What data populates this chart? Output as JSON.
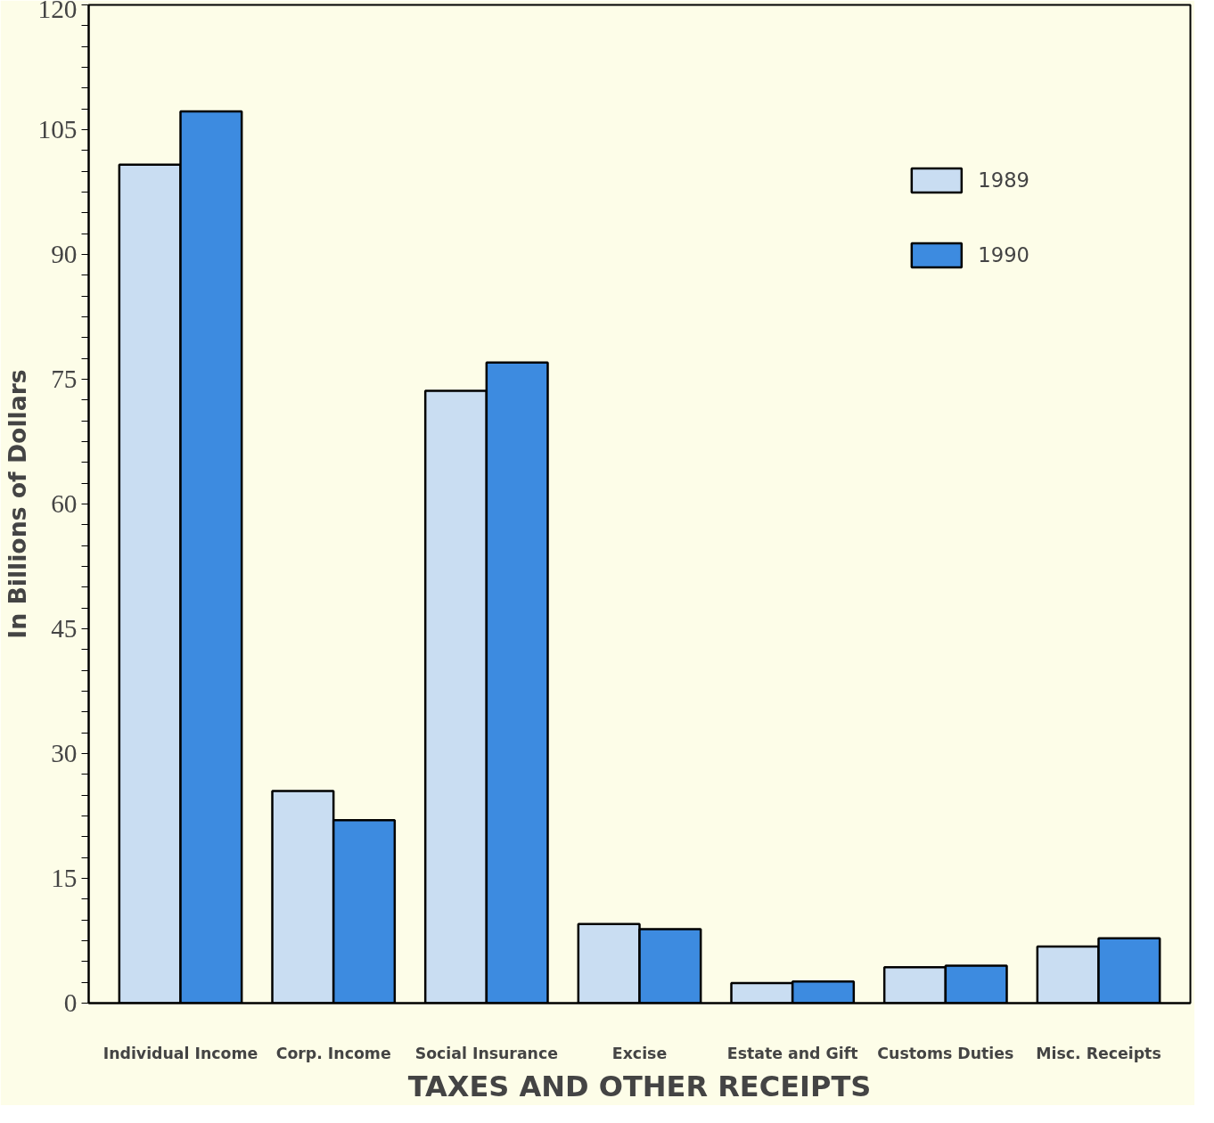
{
  "chart_data": {
    "type": "bar",
    "xlabel": "TAXES AND OTHER RECEIPTS",
    "ylabel": "In Billions of Dollars",
    "categories": [
      "Individual Income",
      "Corp. Income",
      "Social Insurance",
      "Excise",
      "Estate and Gift",
      "Customs Duties",
      "Misc. Receipts"
    ],
    "series": [
      {
        "name": "1989",
        "color": "#c9ddf2",
        "values": [
          100.8,
          25.5,
          73.6,
          9.5,
          2.4,
          4.3,
          6.8
        ]
      },
      {
        "name": "1990",
        "color": "#3d8be0",
        "values": [
          107.2,
          22.0,
          77.0,
          8.9,
          2.6,
          4.5,
          7.8
        ]
      }
    ],
    "ylim": [
      0,
      120
    ],
    "yticks": [
      0,
      {
        "value": 2.5,
        "label": null
      },
      {
        "value": 5,
        "label": null
      },
      {
        "value": 7.5,
        "label": null
      },
      {
        "value": 10,
        "label": null
      },
      {
        "value": 12.5,
        "label": null
      },
      15,
      {
        "value": 17.5,
        "label": null
      },
      {
        "value": 20,
        "label": null
      },
      {
        "value": 22.5,
        "label": null
      },
      {
        "value": 25,
        "label": null
      },
      {
        "value": 27.5,
        "label": null
      },
      30,
      {
        "value": 32.5,
        "label": null
      },
      {
        "value": 35,
        "label": null
      },
      {
        "value": 37.5,
        "label": null
      },
      {
        "value": 40,
        "label": null
      },
      {
        "value": 42.5,
        "label": null
      },
      45,
      {
        "value": 47.5,
        "label": null
      },
      {
        "value": 50,
        "label": null
      },
      {
        "value": 52.5,
        "label": null
      },
      {
        "value": 55,
        "label": null
      },
      {
        "value": 57.5,
        "label": null
      },
      60,
      {
        "value": 62.5,
        "label": null
      },
      {
        "value": 65,
        "label": null
      },
      {
        "value": 67.5,
        "label": null
      },
      {
        "value": 70,
        "label": null
      },
      {
        "value": 72.5,
        "label": null
      },
      75,
      {
        "value": 77.5,
        "label": null
      },
      {
        "value": 80,
        "label": null
      },
      {
        "value": 82.5,
        "label": null
      },
      {
        "value": 85,
        "label": null
      },
      {
        "value": 87.5,
        "label": null
      },
      90,
      {
        "value": 92.5,
        "label": null
      },
      {
        "value": 95,
        "label": null
      },
      {
        "value": 97.5,
        "label": null
      },
      {
        "value": 100,
        "label": null
      },
      {
        "value": 102.5,
        "label": null
      },
      105,
      {
        "value": 107.5,
        "label": null
      },
      {
        "value": 110,
        "label": null
      },
      {
        "value": 112.5,
        "label": null
      },
      {
        "value": 115,
        "label": null
      },
      {
        "value": 117.5,
        "label": null
      },
      120
    ],
    "grid": false,
    "legend": "top right"
  }
}
